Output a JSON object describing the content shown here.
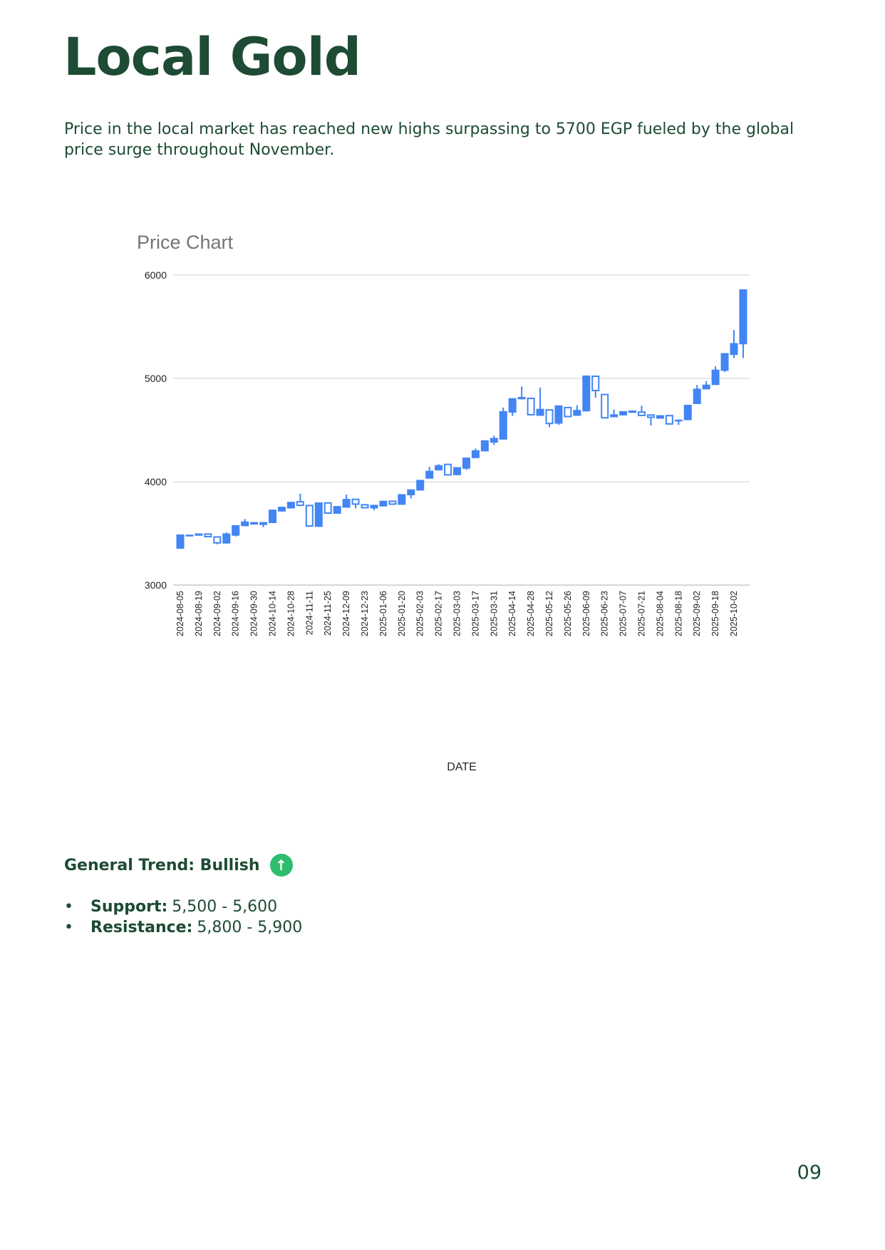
{
  "page": {
    "title": "Local Gold",
    "intro": "Price in the local market has reached new highs surpassing to 5700 EGP fueled by the global price surge throughout November.",
    "trend_label": "General Trend: Bullish",
    "trend_icon": "arrow-up-circle-icon",
    "trend_color": "#2dbd6e",
    "levels": [
      {
        "label": "Support:",
        "value": "5,500 - 5,600"
      },
      {
        "label": "Resistance:",
        "value": "5,800 - 5,900"
      }
    ],
    "page_number": "09"
  },
  "chart_data": {
    "type": "candlestick",
    "title": "Price Chart",
    "xlabel": "DATE",
    "ylabel": "",
    "ylim": [
      3000,
      6000
    ],
    "yticks": [
      "3000",
      "4000",
      "5000",
      "6000"
    ],
    "grid": true,
    "color": "#4285f4",
    "x_tick_labels": [
      "2024-08-05",
      "2024-08-19",
      "2024-09-02",
      "2024-09-16",
      "2024-09-30",
      "2024-10-14",
      "2024-10-28",
      "2024-11-11",
      "2024-11-25",
      "2024-12-09",
      "2024-12-23",
      "2025-01-06",
      "2025-01-20",
      "2025-02-03",
      "2025-02-17",
      "2025-03-03",
      "2025-03-17",
      "2025-03-31",
      "2025-04-14",
      "2025-04-28",
      "2025-05-12",
      "2025-05-26",
      "2025-06-09",
      "2025-06-23",
      "2025-07-07",
      "2025-07-21",
      "2025-08-04",
      "2025-08-18",
      "2025-09-02",
      "2025-09-18",
      "2025-10-02"
    ],
    "candles": [
      {
        "open": 3490,
        "close": 3352,
        "low": 3352,
        "high": 3490
      },
      {
        "open": 3488,
        "close": 3478,
        "low": 3475,
        "high": 3490
      },
      {
        "open": 3500,
        "close": 3478,
        "low": 3478,
        "high": 3500
      },
      {
        "open": 3462,
        "close": 3494,
        "low": 3462,
        "high": 3494
      },
      {
        "open": 3402,
        "close": 3466,
        "low": 3395,
        "high": 3466
      },
      {
        "open": 3500,
        "close": 3402,
        "low": 3402,
        "high": 3510
      },
      {
        "open": 3580,
        "close": 3478,
        "low": 3470,
        "high": 3580
      },
      {
        "open": 3616,
        "close": 3570,
        "low": 3570,
        "high": 3640
      },
      {
        "open": 3610,
        "close": 3586,
        "low": 3586,
        "high": 3610
      },
      {
        "open": 3610,
        "close": 3582,
        "low": 3560,
        "high": 3610
      },
      {
        "open": 3730,
        "close": 3600,
        "low": 3600,
        "high": 3730
      },
      {
        "open": 3758,
        "close": 3712,
        "low": 3712,
        "high": 3758
      },
      {
        "open": 3806,
        "close": 3742,
        "low": 3742,
        "high": 3806
      },
      {
        "open": 3765,
        "close": 3806,
        "low": 3765,
        "high": 3885
      },
      {
        "open": 3565,
        "close": 3770,
        "low": 3565,
        "high": 3770
      },
      {
        "open": 3800,
        "close": 3563,
        "low": 3563,
        "high": 3800
      },
      {
        "open": 3690,
        "close": 3795,
        "low": 3690,
        "high": 3795
      },
      {
        "open": 3765,
        "close": 3690,
        "low": 3690,
        "high": 3765
      },
      {
        "open": 3834,
        "close": 3749,
        "low": 3749,
        "high": 3876
      },
      {
        "open": 3777,
        "close": 3830,
        "low": 3742,
        "high": 3830
      },
      {
        "open": 3742,
        "close": 3777,
        "low": 3742,
        "high": 3777
      },
      {
        "open": 3777,
        "close": 3742,
        "low": 3724,
        "high": 3777
      },
      {
        "open": 3816,
        "close": 3761,
        "low": 3761,
        "high": 3816
      },
      {
        "open": 3777,
        "close": 3811,
        "low": 3777,
        "high": 3811
      },
      {
        "open": 3880,
        "close": 3777,
        "low": 3777,
        "high": 3880
      },
      {
        "open": 3926,
        "close": 3869,
        "low": 3839,
        "high": 3926
      },
      {
        "open": 4018,
        "close": 3915,
        "low": 3915,
        "high": 4018
      },
      {
        "open": 4106,
        "close": 4030,
        "low": 4030,
        "high": 4145
      },
      {
        "open": 4161,
        "close": 4110,
        "low": 4110,
        "high": 4170
      },
      {
        "open": 4060,
        "close": 4168,
        "low": 4060,
        "high": 4168
      },
      {
        "open": 4142,
        "close": 4064,
        "low": 4064,
        "high": 4142
      },
      {
        "open": 4234,
        "close": 4126,
        "low": 4115,
        "high": 4234
      },
      {
        "open": 4305,
        "close": 4229,
        "low": 4229,
        "high": 4321
      },
      {
        "open": 4401,
        "close": 4294,
        "low": 4294,
        "high": 4401
      },
      {
        "open": 4424,
        "close": 4378,
        "low": 4356,
        "high": 4447
      },
      {
        "open": 4683,
        "close": 4408,
        "low": 4408,
        "high": 4718
      },
      {
        "open": 4809,
        "close": 4669,
        "low": 4637,
        "high": 4809
      },
      {
        "open": 4821,
        "close": 4798,
        "low": 4798,
        "high": 4922
      },
      {
        "open": 4642,
        "close": 4807,
        "low": 4642,
        "high": 4807
      },
      {
        "open": 4706,
        "close": 4638,
        "low": 4638,
        "high": 4911
      },
      {
        "open": 4557,
        "close": 4695,
        "low": 4528,
        "high": 4695
      },
      {
        "open": 4739,
        "close": 4562,
        "low": 4550,
        "high": 4739
      },
      {
        "open": 4624,
        "close": 4718,
        "low": 4624,
        "high": 4718
      },
      {
        "open": 4695,
        "close": 4638,
        "low": 4638,
        "high": 4741
      },
      {
        "open": 5028,
        "close": 4681,
        "low": 4681,
        "high": 5028
      },
      {
        "open": 4876,
        "close": 5021,
        "low": 4814,
        "high": 5021
      },
      {
        "open": 4612,
        "close": 4844,
        "low": 4612,
        "high": 4844
      },
      {
        "open": 4653,
        "close": 4624,
        "low": 4624,
        "high": 4699
      },
      {
        "open": 4683,
        "close": 4642,
        "low": 4642,
        "high": 4683
      },
      {
        "open": 4690,
        "close": 4667,
        "low": 4667,
        "high": 4690
      },
      {
        "open": 4635,
        "close": 4674,
        "low": 4635,
        "high": 4736
      },
      {
        "open": 4617,
        "close": 4646,
        "low": 4544,
        "high": 4646
      },
      {
        "open": 4644,
        "close": 4610,
        "low": 4610,
        "high": 4644
      },
      {
        "open": 4553,
        "close": 4640,
        "low": 4553,
        "high": 4640
      },
      {
        "open": 4601,
        "close": 4592,
        "low": 4550,
        "high": 4601
      },
      {
        "open": 4745,
        "close": 4596,
        "low": 4596,
        "high": 4745
      },
      {
        "open": 4901,
        "close": 4752,
        "low": 4752,
        "high": 4936
      },
      {
        "open": 4940,
        "close": 4894,
        "low": 4894,
        "high": 4975
      },
      {
        "open": 5085,
        "close": 4936,
        "low": 4936,
        "high": 5117
      },
      {
        "open": 5245,
        "close": 5073,
        "low": 5062,
        "high": 5245
      },
      {
        "open": 5342,
        "close": 5227,
        "low": 5197,
        "high": 5468
      },
      {
        "open": 5862,
        "close": 5330,
        "low": 5197,
        "high": 5862
      }
    ]
  }
}
